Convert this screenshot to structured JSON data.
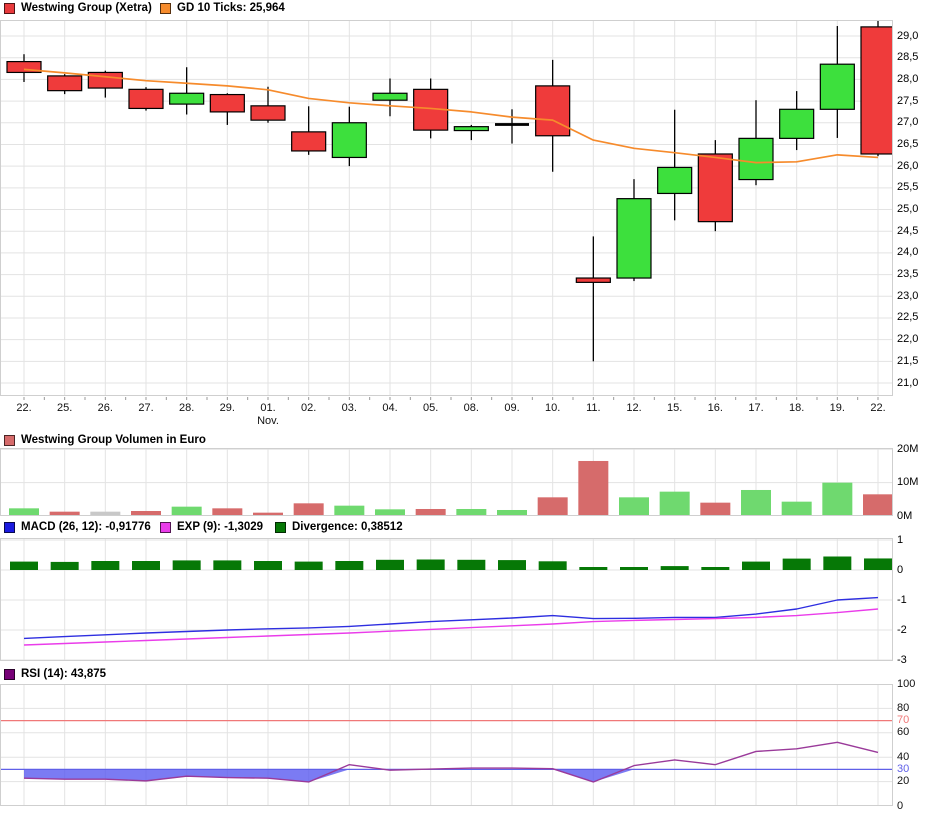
{
  "title": "Westwing Group (Xetra)",
  "panels": {
    "main": {
      "legend": [
        {
          "label": "Westwing Group (Xetra)",
          "color": "#e8393c"
        },
        {
          "label": "GD 10 Ticks: 25,964",
          "color": "#f68b2c"
        }
      ]
    },
    "volume": {
      "legend": [
        {
          "label": "Westwing Group Volumen in Euro",
          "color": "#d66b6b"
        }
      ]
    },
    "macd": {
      "legend": [
        {
          "label": "MACD (26, 12): -0,91776",
          "color": "#1a1ae0"
        },
        {
          "label": "EXP (9): -1,3029",
          "color": "#ea3cea"
        },
        {
          "label": "Divergence: 0,38512",
          "color": "#067806"
        }
      ]
    },
    "rsi": {
      "legend": [
        {
          "label": "RSI (14): 43,875",
          "color": "#770077"
        }
      ]
    }
  },
  "chart_data": [
    {
      "id": "price",
      "type": "candlestick",
      "title": "Westwing Group (Xetra)",
      "x_labels": [
        "22.",
        "25.",
        "26.",
        "27.",
        "28.",
        "29.",
        "01.",
        "02.",
        "03.",
        "04.",
        "05.",
        "08.",
        "09.",
        "10.",
        "11.",
        "12.",
        "15.",
        "16.",
        "17.",
        "18.",
        "19.",
        "22."
      ],
      "month_label": {
        "text": "Nov.",
        "index": 6
      },
      "y_ticks": [
        "29,0",
        "28,5",
        "28,0",
        "27,5",
        "27,0",
        "26,5",
        "26,0",
        "25,5",
        "25,0",
        "24,5",
        "24,0",
        "23,5",
        "23,0",
        "22,5",
        "22,0",
        "21,5",
        "21,0"
      ],
      "y_tick_values": [
        29,
        28.5,
        28,
        27.5,
        27,
        26.5,
        26,
        25.5,
        25,
        24.5,
        24,
        23.5,
        23,
        22.5,
        22,
        21.5,
        21
      ],
      "ylim": [
        20.7,
        29.37
      ],
      "open": [
        28.41,
        28.08,
        28.16,
        27.77,
        27.43,
        27.65,
        27.39,
        26.79,
        26.2,
        27.52,
        27.77,
        26.82,
        26.96,
        27.85,
        23.42,
        23.42,
        25.37,
        26.28,
        25.69,
        26.64,
        27.31,
        29.21
      ],
      "high": [
        28.58,
        28.12,
        28.2,
        27.82,
        28.28,
        27.68,
        27.83,
        27.38,
        27.37,
        28.02,
        28.02,
        26.95,
        27.31,
        28.45,
        24.38,
        25.7,
        27.3,
        26.6,
        27.52,
        27.73,
        29.23,
        29.37
      ],
      "low": [
        27.94,
        27.66,
        27.58,
        27.28,
        27.19,
        26.95,
        27.0,
        26.26,
        26.0,
        27.15,
        26.64,
        26.6,
        26.52,
        25.87,
        21.5,
        23.35,
        24.75,
        24.5,
        25.56,
        26.37,
        26.65,
        26.23
      ],
      "close": [
        28.16,
        27.74,
        27.8,
        27.33,
        27.68,
        27.25,
        27.06,
        26.35,
        27.0,
        27.68,
        26.83,
        26.91,
        26.96,
        26.7,
        23.32,
        25.25,
        25.97,
        24.72,
        26.64,
        27.31,
        28.35,
        26.28
      ],
      "colors": {
        "up": "#3de03d",
        "down": "#ef3b3b",
        "doji": "#000000"
      },
      "overlay_line": {
        "name": "GD 10 Ticks",
        "last_value": "25,964",
        "color": "#f68b2c",
        "values": [
          28.23,
          28.15,
          28.06,
          27.97,
          27.91,
          27.85,
          27.76,
          27.56,
          27.46,
          27.39,
          27.33,
          27.25,
          27.13,
          27.06,
          26.6,
          26.41,
          26.31,
          26.2,
          26.08,
          26.1,
          26.26,
          26.2
        ]
      }
    },
    {
      "id": "volume",
      "type": "bar",
      "title": "Westwing Group Volumen in Euro",
      "y_ticks": [
        "20M",
        "10M",
        "0M"
      ],
      "y_tick_values": [
        20,
        10,
        0
      ],
      "ylim": [
        0,
        20.4
      ],
      "values_millions": [
        2.3,
        1.3,
        1.3,
        1.5,
        2.8,
        2.3,
        1.0,
        3.8,
        3.1,
        2.0,
        2.1,
        2.1,
        1.8,
        5.6,
        16.5,
        5.6,
        7.3,
        4.0,
        7.8,
        4.3,
        10.0,
        6.5
      ],
      "directions": [
        "up",
        "down",
        "neutral",
        "down",
        "up",
        "down",
        "down",
        "down",
        "up",
        "up",
        "down",
        "up",
        "up",
        "down",
        "down",
        "up",
        "up",
        "down",
        "up",
        "up",
        "up",
        "down"
      ],
      "colors": {
        "up": "#6fd96f",
        "down": "#d66b6b",
        "neutral": "#c8c8c8"
      }
    },
    {
      "id": "macd",
      "type": "macd",
      "y_ticks": [
        "1",
        "0",
        "-1",
        "-2",
        "-3"
      ],
      "y_tick_values": [
        1,
        0,
        -1,
        -2,
        -3
      ],
      "ylim": [
        -3.07,
        1.07
      ],
      "series": [
        {
          "name": "MACD (26, 12)",
          "kind": "line",
          "color": "#2e2ee0",
          "values": [
            -2.28,
            -2.22,
            -2.16,
            -2.1,
            -2.05,
            -2.0,
            -1.96,
            -1.93,
            -1.88,
            -1.8,
            -1.72,
            -1.66,
            -1.6,
            -1.52,
            -1.62,
            -1.61,
            -1.58,
            -1.58,
            -1.47,
            -1.3,
            -1.0,
            -0.92
          ]
        },
        {
          "name": "EXP (9)",
          "kind": "line",
          "color": "#ea3cea",
          "values": [
            -2.5,
            -2.45,
            -2.4,
            -2.35,
            -2.3,
            -2.25,
            -2.2,
            -2.15,
            -2.1,
            -2.04,
            -1.98,
            -1.92,
            -1.86,
            -1.8,
            -1.72,
            -1.68,
            -1.65,
            -1.62,
            -1.58,
            -1.52,
            -1.42,
            -1.3
          ]
        },
        {
          "name": "Divergence",
          "kind": "bar",
          "color": "#067806",
          "values": [
            0.28,
            0.27,
            0.3,
            0.3,
            0.32,
            0.32,
            0.3,
            0.28,
            0.3,
            0.34,
            0.35,
            0.34,
            0.33,
            0.29,
            0.1,
            0.1,
            0.13,
            0.1,
            0.28,
            0.38,
            0.45,
            0.385
          ]
        }
      ]
    },
    {
      "id": "rsi",
      "type": "line",
      "y_ticks": [
        {
          "label": "100",
          "value": 100,
          "color": "#111111"
        },
        {
          "label": "80",
          "value": 80,
          "color": "#111111"
        },
        {
          "label": "70",
          "value": 70,
          "color": "#f07878"
        },
        {
          "label": "60",
          "value": 60,
          "color": "#111111"
        },
        {
          "label": "40",
          "value": 40,
          "color": "#111111"
        },
        {
          "label": "30",
          "value": 30,
          "color": "#6060e8"
        },
        {
          "label": "20",
          "value": 20,
          "color": "#111111"
        },
        {
          "label": "0",
          "value": 0,
          "color": "#111111"
        }
      ],
      "ylim": [
        0,
        100
      ],
      "series": [
        {
          "name": "RSI (14)",
          "color": "#9a3a9a",
          "values": [
            22.8,
            22.0,
            22.0,
            20.6,
            24.4,
            23.3,
            22.8,
            19.7,
            33.9,
            29.4,
            30.3,
            31.1,
            31.1,
            30.6,
            19.7,
            33.1,
            37.8,
            33.9,
            44.7,
            46.9,
            52.2,
            43.875
          ]
        }
      ],
      "reference_lines": [
        {
          "value": 70,
          "color": "#f07878"
        },
        {
          "value": 30,
          "color": "#6060e8"
        }
      ],
      "fill_below": {
        "threshold": 30,
        "color": "rgba(90,90,240,0.8)"
      }
    }
  ]
}
